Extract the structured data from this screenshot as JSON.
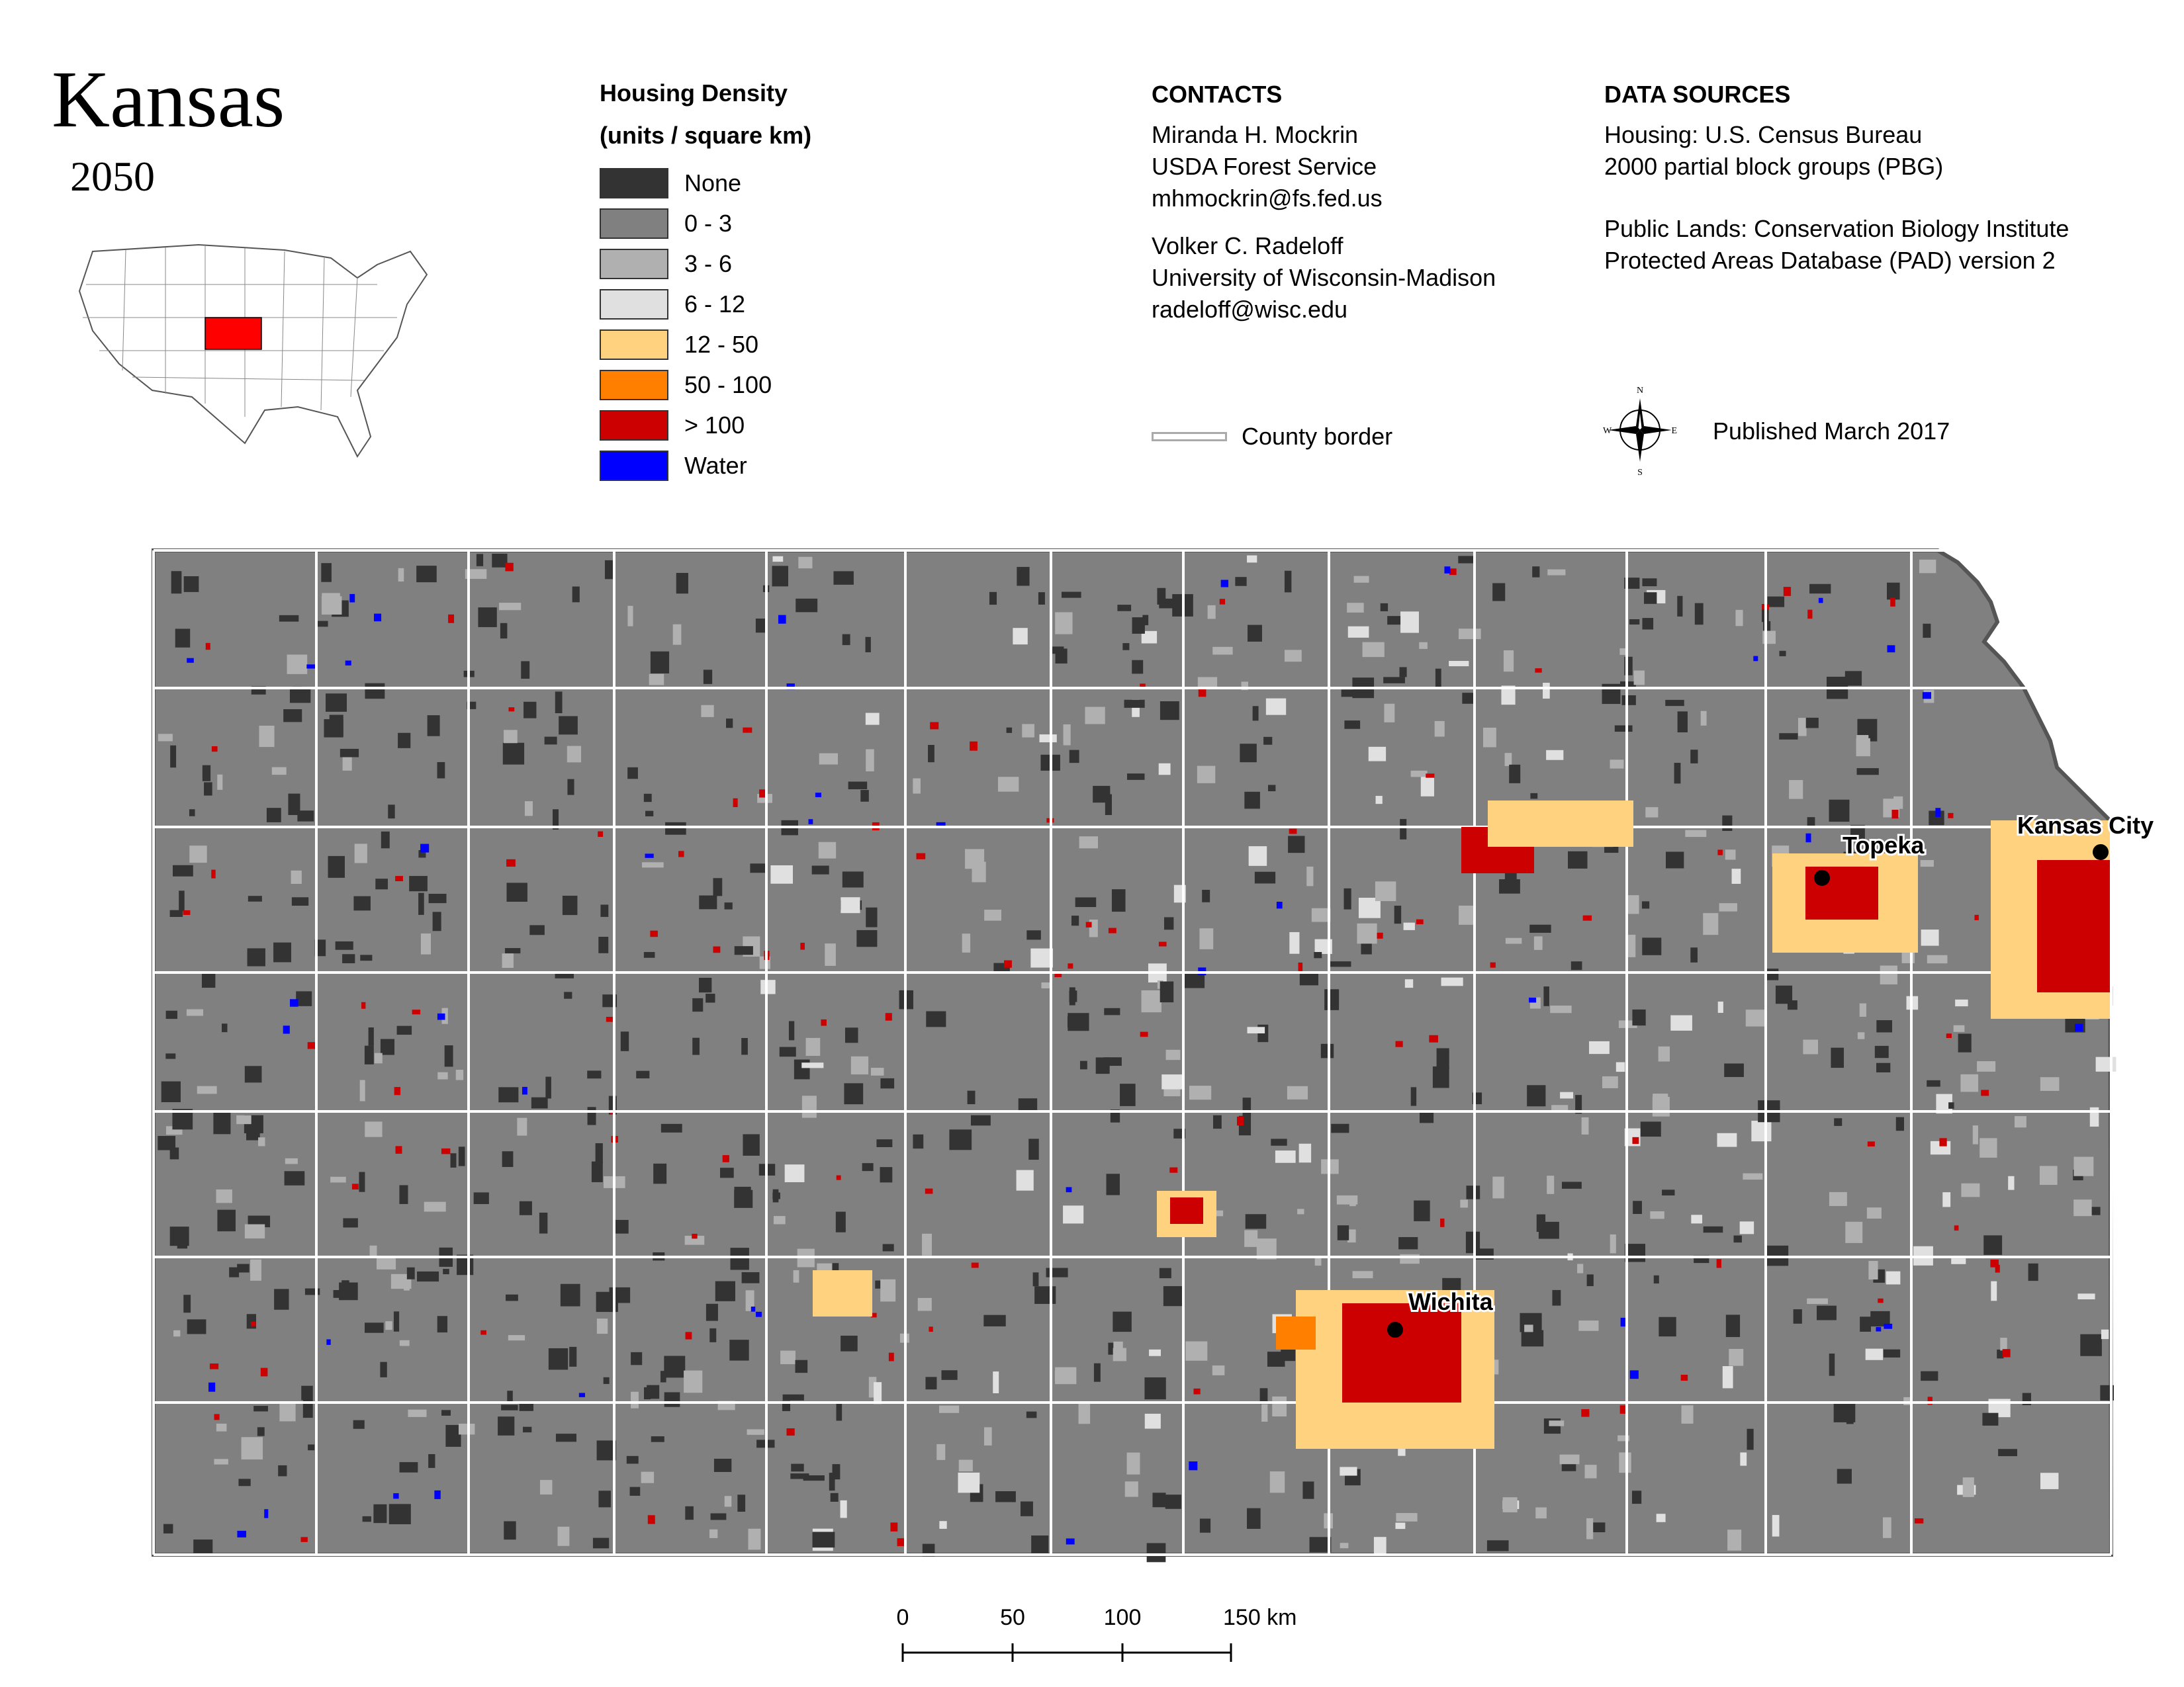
{
  "title": "Kansas",
  "year": "2050",
  "legend": {
    "title_line1": "Housing Density",
    "title_line2": "(units / square km)",
    "items": [
      {
        "label": "None",
        "color": "#333333"
      },
      {
        "label": "0 - 3",
        "color": "#808080"
      },
      {
        "label": "3 - 6",
        "color": "#b0b0b0"
      },
      {
        "label": "6 - 12",
        "color": "#e0e0e0"
      },
      {
        "label": "12 - 50",
        "color": "#ffd27f"
      },
      {
        "label": "50 - 100",
        "color": "#ff8000"
      },
      {
        "label": "> 100",
        "color": "#cc0000"
      },
      {
        "label": "Water",
        "color": "#0000ff"
      }
    ]
  },
  "contacts": {
    "heading": "CONTACTS",
    "person1": {
      "name": "Miranda H. Mockrin",
      "org": "USDA Forest Service",
      "email": "mhmockrin@fs.fed.us"
    },
    "person2": {
      "name": "Volker C. Radeloff",
      "org": "University of Wisconsin-Madison",
      "email": "radeloff@wisc.edu"
    }
  },
  "data_sources": {
    "heading": "DATA SOURCES",
    "housing_line1": "Housing: U.S. Census Bureau",
    "housing_line2": "2000 partial block groups (PBG)",
    "lands_line1": "Public Lands: Conservation Biology Institute",
    "lands_line2": "Protected Areas Database (PAD) version 2"
  },
  "county_border_label": "County border",
  "published": "Published March 2017",
  "compass": {
    "n": "N",
    "s": "S",
    "e": "E",
    "w": "W"
  },
  "cities": {
    "topeka": "Topeka",
    "kansas_city": "Kansas City",
    "wichita": "Wichita"
  },
  "scale_bar": {
    "ticks": [
      "0",
      "50",
      "100",
      "150 km"
    ]
  },
  "colors": {
    "map_base": "#808080",
    "county_border": "#ffffff",
    "state_highlight": "#ff0000"
  }
}
